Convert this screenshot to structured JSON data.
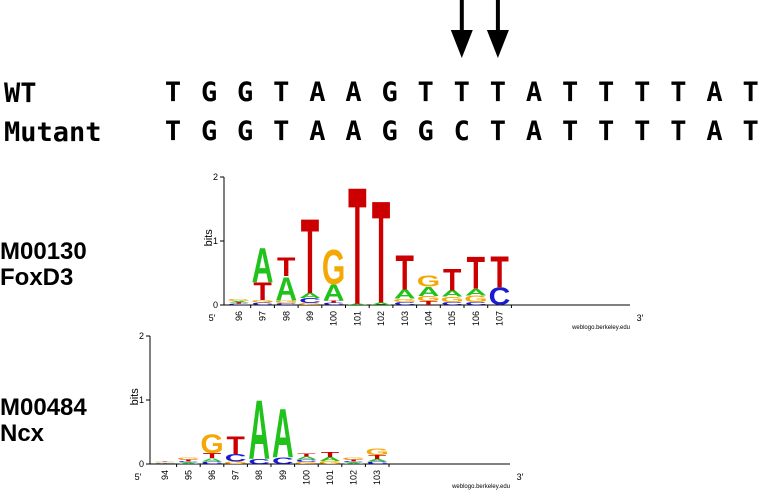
{
  "alignment": {
    "wt_label": "WT",
    "mutant_label": "Mutant",
    "wt_sequence": [
      "T",
      "G",
      "G",
      "T",
      "A",
      "A",
      "G",
      "T",
      "T",
      "T",
      "A",
      "T",
      "T",
      "T",
      "T",
      "A",
      "T"
    ],
    "mutant_sequence": [
      "T",
      "G",
      "G",
      "T",
      "A",
      "A",
      "G",
      "G",
      "C",
      "T",
      "A",
      "T",
      "T",
      "T",
      "T",
      "A",
      "T"
    ],
    "arrow_positions": [
      8,
      9
    ]
  },
  "colors": {
    "A": "#21c21c",
    "C": "#1a1ad1",
    "G": "#f4a806",
    "T": "#cc0000"
  },
  "motifs": [
    {
      "id": "M00130",
      "name": "FoxD3",
      "y_label": "bits",
      "y_ticks": [
        "0",
        "1",
        "2"
      ],
      "ymax": 2,
      "start_label": "5′",
      "end_label": "3′",
      "credit": "weblogo.berkeley.edu",
      "positions": [
        "96",
        "97",
        "98",
        "99",
        "100",
        "101",
        "102",
        "103",
        "104",
        "105",
        "106",
        "107"
      ],
      "stacks": [
        [
          [
            "C",
            0.02
          ],
          [
            "T",
            0.02
          ],
          [
            "A",
            0.02
          ],
          [
            "G",
            0.03
          ]
        ],
        [
          [
            "C",
            0.04
          ],
          [
            "G",
            0.04
          ],
          [
            "T",
            0.28
          ],
          [
            "A",
            0.55
          ]
        ],
        [
          [
            "C",
            0.03
          ],
          [
            "G",
            0.04
          ],
          [
            "A",
            0.38
          ],
          [
            "T",
            0.3
          ]
        ],
        [
          [
            "G",
            0.03
          ],
          [
            "C",
            0.08
          ],
          [
            "A",
            0.08
          ],
          [
            "T",
            1.2
          ]
        ],
        [
          [
            "C",
            0.04
          ],
          [
            "T",
            0.03
          ],
          [
            "A",
            0.26
          ],
          [
            "G",
            0.55
          ]
        ],
        [
          [
            "A",
            0.02
          ],
          [
            "T",
            1.88
          ]
        ],
        [
          [
            "A",
            0.04
          ],
          [
            "T",
            1.64
          ]
        ],
        [
          [
            "C",
            0.05
          ],
          [
            "G",
            0.05
          ],
          [
            "A",
            0.14
          ],
          [
            "T",
            0.55
          ]
        ],
        [
          [
            "T",
            0.06
          ],
          [
            "G",
            0.08
          ],
          [
            "A",
            0.15
          ],
          [
            "G",
            0.18
          ]
        ],
        [
          [
            "C",
            0.05
          ],
          [
            "G",
            0.08
          ],
          [
            "A",
            0.1
          ],
          [
            "T",
            0.35
          ]
        ],
        [
          [
            "C",
            0.05
          ],
          [
            "G",
            0.1
          ],
          [
            "A",
            0.1
          ],
          [
            "T",
            0.52
          ]
        ],
        [
          [
            "C",
            0.28
          ],
          [
            "T",
            0.5
          ]
        ]
      ]
    },
    {
      "id": "M00484",
      "name": "Ncx",
      "y_label": "bits",
      "y_ticks": [
        "0",
        "1",
        "2"
      ],
      "ymax": 2,
      "start_label": "5′",
      "end_label": "3′",
      "credit": "weblogo.berkeley.edu",
      "positions": [
        "94",
        "95",
        "96",
        "97",
        "98",
        "99",
        "100",
        "101",
        "102",
        "103"
      ],
      "stacks": [
        [
          [
            "A",
            0.01
          ],
          [
            "C",
            0.01
          ],
          [
            "G",
            0.01
          ],
          [
            "T",
            0.01
          ]
        ],
        [
          [
            "A",
            0.02
          ],
          [
            "C",
            0.02
          ],
          [
            "T",
            0.03
          ],
          [
            "G",
            0.03
          ]
        ],
        [
          [
            "C",
            0.04
          ],
          [
            "A",
            0.05
          ],
          [
            "T",
            0.08
          ],
          [
            "G",
            0.3
          ]
        ],
        [
          [
            "G",
            0.04
          ],
          [
            "C",
            0.12
          ],
          [
            "T",
            0.28
          ]
        ],
        [
          [
            "C",
            0.08
          ],
          [
            "A",
            0.95
          ]
        ],
        [
          [
            "C",
            0.1
          ],
          [
            "A",
            0.78
          ]
        ],
        [
          [
            "G",
            0.03
          ],
          [
            "C",
            0.04
          ],
          [
            "A",
            0.05
          ],
          [
            "T",
            0.05
          ]
        ],
        [
          [
            "G",
            0.05
          ],
          [
            "A",
            0.06
          ],
          [
            "T",
            0.08
          ]
        ],
        [
          [
            "A",
            0.02
          ],
          [
            "C",
            0.02
          ],
          [
            "T",
            0.03
          ],
          [
            "G",
            0.03
          ]
        ],
        [
          [
            "C",
            0.04
          ],
          [
            "A",
            0.04
          ],
          [
            "T",
            0.06
          ],
          [
            "G",
            0.1
          ]
        ]
      ]
    }
  ]
}
